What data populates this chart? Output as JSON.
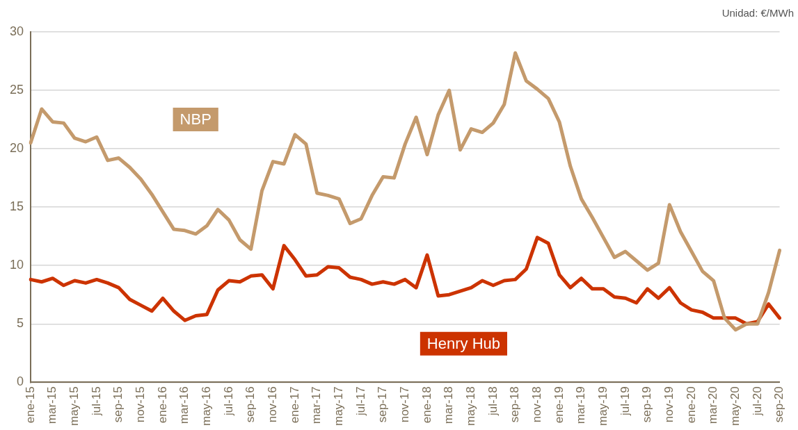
{
  "chart_data": {
    "type": "line",
    "annotations": [
      "Unidad: €/MWh"
    ],
    "categories": [
      "ene-15",
      null,
      "mar-15",
      null,
      "may-15",
      null,
      "jul-15",
      null,
      "sep-15",
      null,
      "nov-15",
      null,
      "ene-16",
      null,
      "mar-16",
      null,
      "may-16",
      null,
      "jul-16",
      null,
      "sep-16",
      null,
      "nov-16",
      null,
      "ene-17",
      null,
      "mar-17",
      null,
      "may-17",
      null,
      "jul-17",
      null,
      "sep-17",
      null,
      "nov-17",
      null,
      "ene-18",
      null,
      "mar-18",
      null,
      "may-18",
      null,
      "jul-18",
      null,
      "sep-18",
      null,
      "nov-18",
      null,
      "ene-19",
      null,
      "mar-19",
      null,
      "may-19",
      null,
      "jul-19",
      null,
      "sep-19",
      null,
      "nov-19",
      null,
      "ene-20",
      null,
      "mar-20",
      null,
      "may-20",
      null,
      "jul-20",
      null,
      "sep-20"
    ],
    "series": [
      {
        "name": "NBP",
        "color": "#c49a6c",
        "values": [
          20.5,
          23.4,
          22.3,
          22.2,
          20.9,
          20.6,
          21.0,
          19.0,
          19.2,
          18.4,
          17.4,
          16.1,
          14.6,
          13.1,
          13.0,
          12.7,
          13.4,
          14.8,
          13.9,
          12.2,
          11.4,
          16.4,
          18.9,
          18.7,
          21.2,
          20.4,
          16.2,
          16.0,
          15.7,
          13.6,
          14.0,
          16.0,
          17.6,
          17.5,
          20.4,
          22.7,
          19.5,
          22.9,
          25.0,
          19.9,
          21.7,
          21.4,
          22.2,
          23.8,
          28.2,
          25.8,
          25.1,
          24.3,
          22.3,
          18.5,
          15.7,
          14.1,
          12.4,
          10.7,
          11.2,
          10.4,
          9.6,
          10.2,
          15.2,
          12.9,
          11.2,
          9.5,
          8.7,
          5.5,
          4.5,
          5.0,
          5.0,
          7.7,
          11.3
        ]
      },
      {
        "name": "Henry Hub",
        "color": "#cc3300",
        "values": [
          8.8,
          8.6,
          8.9,
          8.3,
          8.7,
          8.5,
          8.8,
          8.5,
          8.1,
          7.1,
          6.6,
          6.1,
          7.2,
          6.1,
          5.3,
          5.7,
          5.8,
          7.9,
          8.7,
          8.6,
          9.1,
          9.2,
          8.0,
          11.7,
          10.5,
          9.1,
          9.2,
          9.9,
          9.8,
          9.0,
          8.8,
          8.4,
          8.6,
          8.4,
          8.8,
          8.1,
          10.9,
          7.4,
          7.5,
          7.8,
          8.1,
          8.7,
          8.3,
          8.7,
          8.8,
          9.7,
          12.4,
          11.9,
          9.2,
          8.1,
          8.9,
          8.0,
          8.0,
          7.3,
          7.2,
          6.8,
          8.0,
          7.2,
          8.1,
          6.8,
          6.2,
          6.0,
          5.5,
          5.5,
          5.5,
          5.0,
          5.2,
          6.7,
          5.5
        ]
      }
    ],
    "ylim": [
      0,
      30
    ],
    "yticks": [
      0,
      5,
      10,
      15,
      20,
      25,
      30
    ],
    "grid": "y",
    "legend": false,
    "marker": "none",
    "line_style": "solid"
  }
}
